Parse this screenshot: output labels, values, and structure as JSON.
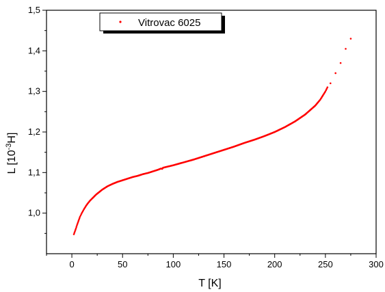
{
  "chart_data": {
    "type": "scatter",
    "xlabel": "T [K]",
    "ylabel": {
      "prefix": "L [10",
      "exponent": "-3",
      "suffix": "H]"
    },
    "xlim": [
      -25,
      300
    ],
    "ylim": [
      0.9,
      1.5
    ],
    "x_ticks": [
      0,
      50,
      100,
      150,
      200,
      250,
      300
    ],
    "x_tick_labels": [
      "0",
      "50",
      "100",
      "150",
      "200",
      "250",
      "300"
    ],
    "y_ticks": [
      1.0,
      1.1,
      1.2,
      1.3,
      1.4,
      1.5
    ],
    "y_tick_labels": [
      "1,0",
      "1,1",
      "1,2",
      "1,3",
      "1,4",
      "1,5"
    ],
    "grid": false,
    "legend": {
      "position": "top-left",
      "entries": [
        "Vitrovac 6025"
      ]
    },
    "series": [
      {
        "name": "Vitrovac 6025",
        "color": "#ff0000",
        "marker": "dot",
        "points": [
          [
            2.0,
            0.948
          ],
          [
            3.0,
            0.955
          ],
          [
            4.0,
            0.962
          ],
          [
            5.0,
            0.97
          ],
          [
            6.0,
            0.977
          ],
          [
            7.0,
            0.984
          ],
          [
            8.0,
            0.991
          ],
          [
            10.0,
            1.001
          ],
          [
            12.0,
            1.01
          ],
          [
            14.0,
            1.018
          ],
          [
            16.0,
            1.025
          ],
          [
            18.0,
            1.031
          ],
          [
            20.0,
            1.036
          ],
          [
            22.0,
            1.041
          ],
          [
            24.0,
            1.046
          ],
          [
            27.0,
            1.052
          ],
          [
            30.0,
            1.058
          ],
          [
            35.0,
            1.066
          ],
          [
            40.0,
            1.072
          ],
          [
            45.0,
            1.077
          ],
          [
            50.0,
            1.081
          ],
          [
            55.0,
            1.085
          ],
          [
            60.0,
            1.089
          ],
          [
            65.0,
            1.092
          ],
          [
            70.0,
            1.096
          ],
          [
            75.0,
            1.099
          ],
          [
            80.0,
            1.103
          ],
          [
            85.0,
            1.107
          ],
          [
            88.0,
            1.11
          ],
          [
            89.0,
            1.109
          ],
          [
            90.0,
            1.112
          ],
          [
            95.0,
            1.115
          ],
          [
            100.0,
            1.118
          ],
          [
            110.0,
            1.125
          ],
          [
            120.0,
            1.132
          ],
          [
            130.0,
            1.14
          ],
          [
            140.0,
            1.148
          ],
          [
            150.0,
            1.156
          ],
          [
            160.0,
            1.164
          ],
          [
            170.0,
            1.173
          ],
          [
            180.0,
            1.181
          ],
          [
            190.0,
            1.19
          ],
          [
            200.0,
            1.2
          ],
          [
            210.0,
            1.212
          ],
          [
            220.0,
            1.226
          ],
          [
            230.0,
            1.243
          ],
          [
            240.0,
            1.265
          ],
          [
            245.0,
            1.28
          ],
          [
            250.0,
            1.3
          ],
          [
            252.0,
            1.31
          ],
          [
            255.0,
            1.32
          ],
          [
            260.0,
            1.345
          ],
          [
            265.0,
            1.37
          ],
          [
            270.0,
            1.405
          ],
          [
            275.0,
            1.43
          ]
        ]
      }
    ]
  }
}
